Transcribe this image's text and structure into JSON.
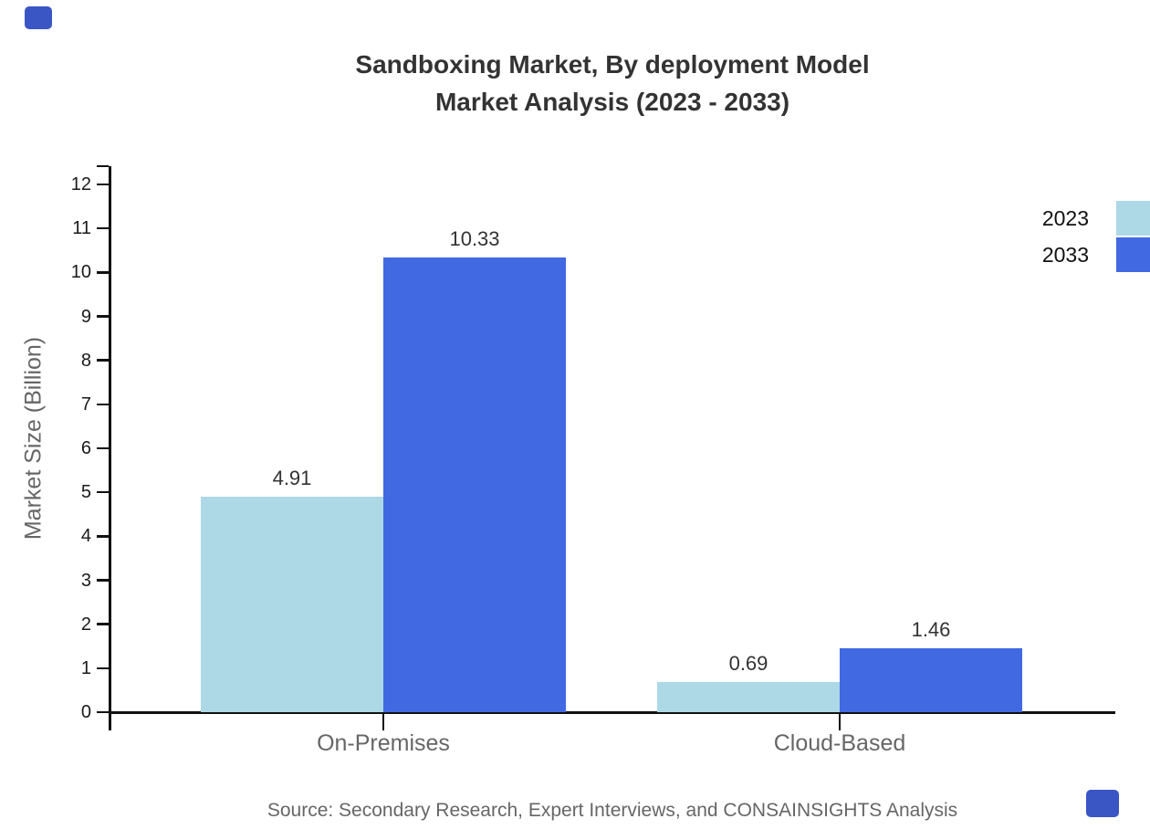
{
  "chart_data": {
    "type": "bar",
    "title": "Sandboxing Market, By deployment Model",
    "subtitle": "Market Analysis (2023 - 2033)",
    "categories": [
      "On-Premises",
      "Cloud-Based"
    ],
    "series": [
      {
        "name": "2023",
        "color": "#ADD8E6",
        "values": [
          4.91,
          0.69
        ]
      },
      {
        "name": "2033",
        "color": "#4169E1",
        "values": [
          10.33,
          1.46
        ]
      }
    ],
    "xlabel": "",
    "ylabel": "Market Size (Billion)",
    "ylim": [
      0,
      12
    ],
    "yticks": [
      0,
      1,
      2,
      3,
      4,
      5,
      6,
      7,
      8,
      9,
      10,
      11,
      12
    ],
    "grid": false,
    "legend_position": "top-right",
    "value_labels_shown": [
      "4.91",
      "10.33",
      "0.69",
      "1.46"
    ]
  },
  "source": {
    "text": "Source: Secondary Research, Expert Interviews, and CONSAINSIGHTS Analysis"
  },
  "brand": {
    "mark_color": "#3A55C4"
  },
  "colors": {
    "axis": "#111111",
    "title_text": "#333333",
    "muted_text": "#666666",
    "series_2023": "#ADD8E6",
    "series_2033": "#4169E1"
  }
}
